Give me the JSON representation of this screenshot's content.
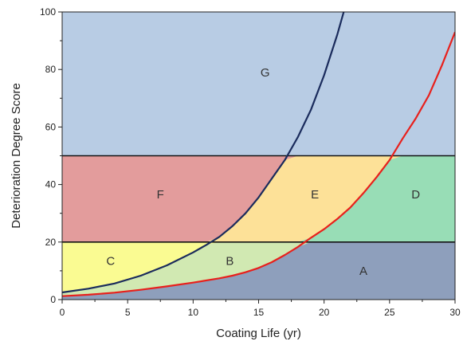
{
  "chart_data": {
    "type": "area",
    "xlabel": "Coating Life (yr)",
    "ylabel": "Deterioration Degree Score",
    "xlim": [
      0,
      30
    ],
    "ylim": [
      0,
      100
    ],
    "x_ticks": [
      0,
      5,
      10,
      15,
      20,
      25,
      30
    ],
    "y_ticks": [
      0,
      20,
      40,
      60,
      80,
      100
    ],
    "grid": false,
    "thresholds": [
      20,
      50
    ],
    "series": [
      {
        "color": "#e8201c",
        "x": [
          0,
          2,
          4,
          6,
          8,
          10,
          12,
          13,
          14,
          15,
          16,
          17,
          18,
          19,
          20,
          21,
          22,
          23,
          24,
          25,
          26,
          27,
          28,
          29,
          30
        ],
        "y": [
          1.2,
          1.7,
          2.4,
          3.4,
          4.6,
          5.9,
          7.4,
          8.3,
          9.5,
          11.0,
          13.0,
          15.5,
          18.3,
          21.5,
          24.5,
          28.0,
          32.0,
          37.0,
          42.5,
          48.5,
          56.0,
          63.0,
          71.0,
          81.5,
          93.0
        ]
      },
      {
        "color": "#1a2b5c",
        "x": [
          0,
          2,
          4,
          6,
          8,
          10,
          11,
          12,
          13,
          14,
          15,
          16,
          17,
          18,
          19,
          20,
          21,
          21.5
        ],
        "y": [
          2.5,
          3.8,
          5.6,
          8.3,
          11.9,
          16.4,
          19.0,
          21.8,
          25.5,
          30.0,
          35.5,
          42.0,
          48.5,
          56.5,
          66.0,
          78.0,
          92.0,
          100
        ]
      }
    ],
    "regions": [
      {
        "label": "A",
        "x": 23,
        "y": 10,
        "color": "#8e9fbc"
      },
      {
        "label": "B",
        "x": 12.8,
        "y": 13.5,
        "color": "#d1e9b2"
      },
      {
        "label": "C",
        "x": 3.7,
        "y": 13.5,
        "color": "#fafb92"
      },
      {
        "label": "D",
        "x": 27,
        "y": 36.5,
        "color": "#98ddb6"
      },
      {
        "label": "E",
        "x": 19.3,
        "y": 36.5,
        "color": "#fde198"
      },
      {
        "label": "F",
        "x": 7.5,
        "y": 36.5,
        "color": "#e39c9c"
      },
      {
        "label": "G",
        "x": 15.5,
        "y": 79,
        "color": "#b8cce4"
      }
    ]
  }
}
